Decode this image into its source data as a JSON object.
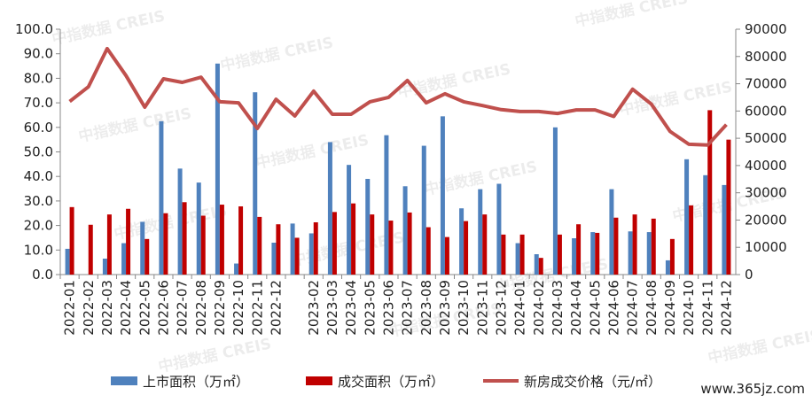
{
  "chart_data": {
    "type": "bar_line",
    "categories": [
      "2022-01",
      "2022-02",
      "2022-03",
      "2022-04",
      "2022-05",
      "2022-06",
      "2022-07",
      "2022-08",
      "2022-09",
      "2022-10",
      "2022-11",
      "2022-12",
      null,
      "2023-02",
      "2023-03",
      "2023-04",
      "2023-05",
      "2023-06",
      "2023-07",
      "2023-08",
      "2023-09",
      "2023-10",
      "2023-11",
      "2023-12",
      "2024-01",
      "2024-02",
      "2024-03",
      "2024-04",
      "2024-05",
      "2024-06",
      "2024-07",
      "2024-08",
      "2024-09",
      "2024-10",
      "2024-11",
      "2024-12"
    ],
    "series": [
      {
        "name": "上市面积（万㎡）",
        "type": "bar",
        "color": "#4f81bd",
        "values": [
          10.5,
          0,
          6.5,
          12.8,
          21.5,
          62.5,
          43.2,
          37.5,
          86,
          4.5,
          74.3,
          13,
          20.8,
          16.8,
          54,
          44.7,
          39,
          56.8,
          36,
          52.5,
          64.5,
          27,
          34.8,
          37,
          12.8,
          8.3,
          60,
          14.8,
          17.3,
          34.8,
          17.6,
          17.3,
          5.8,
          47,
          40.5,
          36.5
        ]
      },
      {
        "name": "成交面积（万㎡）",
        "type": "bar",
        "color": "#c00000",
        "values": [
          27.5,
          20.3,
          24.5,
          26.8,
          14.5,
          25,
          29.5,
          24,
          28.5,
          27.8,
          23.5,
          20.5,
          15,
          21.3,
          25.5,
          29,
          24.5,
          22,
          25.3,
          19.3,
          15.3,
          21.8,
          24.5,
          16.3,
          16.3,
          6.8,
          16.3,
          20.5,
          17,
          23.2,
          24.5,
          22.8,
          14.5,
          28.2,
          67,
          55
        ]
      },
      {
        "name": "新房成交价格（元/㎡）",
        "type": "line",
        "axis": "y2",
        "color": "#c0504d",
        "values": [
          63500,
          68900,
          82900,
          73000,
          61400,
          71800,
          70500,
          72400,
          63400,
          63000,
          53600,
          64300,
          58200,
          67300,
          58800,
          58800,
          63400,
          65000,
          71200,
          63000,
          66300,
          63400,
          62000,
          60500,
          59800,
          59800,
          59100,
          60400,
          60400,
          58000,
          68000,
          62500,
          52500,
          47800,
          47500,
          55000
        ]
      }
    ],
    "ylim": [
      0,
      100
    ],
    "yticks": [
      {
        "value": 0,
        "label": "0.0"
      },
      {
        "value": 10,
        "label": "10.0"
      },
      {
        "value": 20,
        "label": "20.0"
      },
      {
        "value": 30,
        "label": "30.0"
      },
      {
        "value": 40,
        "label": "40.0"
      },
      {
        "value": 50,
        "label": "50.0"
      },
      {
        "value": 60,
        "label": "60.0"
      },
      {
        "value": 70,
        "label": "70.0"
      },
      {
        "value": 80,
        "label": "80.0"
      },
      {
        "value": 90,
        "label": "90.0"
      },
      {
        "value": 100,
        "label": "100.0"
      }
    ],
    "y2lim": [
      0,
      90000
    ],
    "y2ticks": [
      0,
      10000,
      20000,
      30000,
      40000,
      50000,
      60000,
      70000,
      80000,
      90000
    ],
    "legend": "bottom",
    "watermark": "中指数据 CREIS",
    "source_badge": "www.365jz.com"
  }
}
